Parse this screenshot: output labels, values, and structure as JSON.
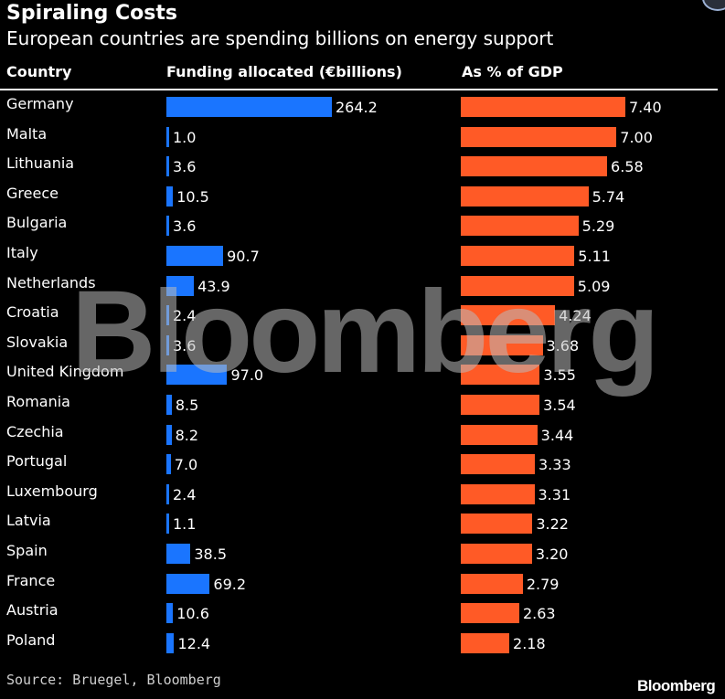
{
  "chart_data": {
    "type": "bar",
    "title": "Spiraling Costs",
    "subtitle": "European countries are spending billions on energy support",
    "column_headers": [
      "Country",
      "Funding allocated (€billions)",
      "As % of GDP"
    ],
    "categories": [
      "Germany",
      "Malta",
      "Lithuania",
      "Greece",
      "Bulgaria",
      "Italy",
      "Netherlands",
      "Croatia",
      "Slovakia",
      "United Kingdom",
      "Romania",
      "Czechia",
      "Portugal",
      "Luxembourg",
      "Latvia",
      "Spain",
      "France",
      "Austria",
      "Poland"
    ],
    "series": [
      {
        "name": "Funding allocated (€billions)",
        "color": "#1a75ff",
        "values": [
          264.2,
          1.0,
          3.6,
          10.5,
          3.6,
          90.7,
          43.9,
          2.4,
          3.6,
          97.0,
          8.5,
          8.2,
          7.0,
          2.4,
          1.1,
          38.5,
          69.2,
          10.6,
          12.4
        ],
        "labels": [
          "264.2",
          "1.0",
          "3.6",
          "10.5",
          "3.6",
          "90.7",
          "43.9",
          "2.4",
          "3.6",
          "97.0",
          "8.5",
          "8.2",
          "7.0",
          "2.4",
          "1.1",
          "38.5",
          "69.2",
          "10.6",
          "12.4"
        ]
      },
      {
        "name": "As % of GDP",
        "color": "#ff5a26",
        "values": [
          7.4,
          7.0,
          6.58,
          5.74,
          5.29,
          5.11,
          5.09,
          4.24,
          3.68,
          3.55,
          3.54,
          3.44,
          3.33,
          3.31,
          3.22,
          3.2,
          2.79,
          2.63,
          2.18
        ],
        "labels": [
          "7.40",
          "7.00",
          "6.58",
          "5.74",
          "5.29",
          "5.11",
          "5.09",
          "4.24",
          "3.68",
          "3.55",
          "3.54",
          "3.44",
          "3.33",
          "3.31",
          "3.22",
          "3.20",
          "2.79",
          "2.63",
          "2.18"
        ]
      }
    ],
    "source": "Source: Bruegel, Bloomberg"
  },
  "watermark": "Bloomberg",
  "brand": "Bloomberg"
}
